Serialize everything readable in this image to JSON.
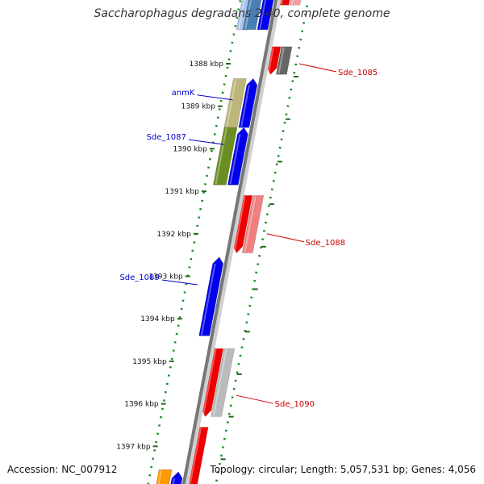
{
  "title": "Saccharophagus degradans 2-40, complete genome",
  "footer": {
    "accession": "Accession: NC_007912",
    "summary": "Topology: circular; Length: 5,057,531 bp; Genes: 4,056"
  },
  "ticks": [
    {
      "label": "1388 kbp",
      "pos": 1388
    },
    {
      "label": "1389 kbp",
      "pos": 1389
    },
    {
      "label": "1390 kbp",
      "pos": 1390
    },
    {
      "label": "1391 kbp",
      "pos": 1391
    },
    {
      "label": "1392 kbp",
      "pos": 1392
    },
    {
      "label": "1393 kbp",
      "pos": 1393
    },
    {
      "label": "1394 kbp",
      "pos": 1394
    },
    {
      "label": "1395 kbp",
      "pos": 1395
    },
    {
      "label": "1396 kbp",
      "pos": 1396
    },
    {
      "label": "1397 kbp",
      "pos": 1397
    }
  ],
  "features": [
    {
      "track": "fwd-outer",
      "start": 1386.65,
      "end": 1387.2,
      "color": "#aac4e8",
      "shape": "rect",
      "cut": "top"
    },
    {
      "track": "fwd-mid",
      "start": 1386.75,
      "end": 1387.2,
      "color": "#4a7fb5",
      "shape": "rect",
      "cut": "top"
    },
    {
      "track": "fwd-inner",
      "start": 1386.75,
      "end": 1387.2,
      "color": "#0000ee",
      "shape": "arrow-up",
      "cut": "top"
    },
    {
      "track": "rev-inner",
      "start": 1386.5,
      "end": 1386.62,
      "color": "#ee0000",
      "shape": "rect",
      "cut": "top"
    },
    {
      "track": "rev-outer",
      "start": 1386.5,
      "end": 1386.62,
      "color": "#f4a0a0",
      "shape": "rect",
      "cut": "top"
    },
    {
      "track": "rev-inner",
      "start": 1387.6,
      "end": 1388.25,
      "color": "#ee0000",
      "shape": "arrow-down"
    },
    {
      "track": "rev-outer",
      "start": 1387.6,
      "end": 1388.25,
      "color": "#666666",
      "shape": "rect"
    },
    {
      "track": "fwd-mid",
      "start": 1388.35,
      "end": 1389.5,
      "color": "#bdb67a",
      "shape": "rect"
    },
    {
      "track": "fwd-inner",
      "start": 1388.35,
      "end": 1389.5,
      "color": "#0000ee",
      "shape": "arrow-up"
    },
    {
      "track": "fwd-mid",
      "start": 1389.5,
      "end": 1390.85,
      "color": "#6b8e23",
      "shape": "rect"
    },
    {
      "track": "fwd-inner",
      "start": 1389.5,
      "end": 1390.85,
      "color": "#0000ee",
      "shape": "arrow-up"
    },
    {
      "track": "rev-inner",
      "start": 1391.1,
      "end": 1392.45,
      "color": "#ee0000",
      "shape": "arrow-down"
    },
    {
      "track": "rev-outer",
      "start": 1391.1,
      "end": 1392.45,
      "color": "#f08080",
      "shape": "rect"
    },
    {
      "track": "fwd-inner",
      "start": 1392.55,
      "end": 1394.4,
      "color": "#0000ee",
      "shape": "arrow-up"
    },
    {
      "track": "rev-inner",
      "start": 1394.7,
      "end": 1396.3,
      "color": "#ee0000",
      "shape": "arrow-down"
    },
    {
      "track": "rev-outer",
      "start": 1394.7,
      "end": 1396.3,
      "color": "#bbbbbb",
      "shape": "rect"
    },
    {
      "track": "rev-inner",
      "start": 1396.55,
      "end": 1397.6,
      "color": "#ee0000",
      "shape": "rect",
      "cut": "bottom"
    },
    {
      "track": "fwd-mid",
      "start": 1397.55,
      "end": 1397.9,
      "color": "#ff9900",
      "shape": "rect",
      "cut": "bottom"
    },
    {
      "track": "fwd-inner",
      "start": 1397.6,
      "end": 1397.9,
      "color": "#0000ee",
      "shape": "arrow-up",
      "cut": "bottom"
    }
  ],
  "gene_labels": [
    {
      "text": "Sde_1085",
      "side": "right",
      "pos": 1388.0,
      "color": "#cc0000"
    },
    {
      "text": "anmK",
      "side": "left",
      "pos": 1388.85,
      "color": "#0000cc"
    },
    {
      "text": "Sde_1087",
      "side": "left",
      "pos": 1389.9,
      "color": "#0000cc"
    },
    {
      "text": "Sde_1088",
      "side": "right",
      "pos": 1392.0,
      "color": "#cc0000"
    },
    {
      "text": "Sde_1089",
      "side": "left",
      "pos": 1393.2,
      "color": "#0000cc"
    },
    {
      "text": "Sde_1090",
      "side": "right",
      "pos": 1395.8,
      "color": "#cc0000"
    }
  ]
}
